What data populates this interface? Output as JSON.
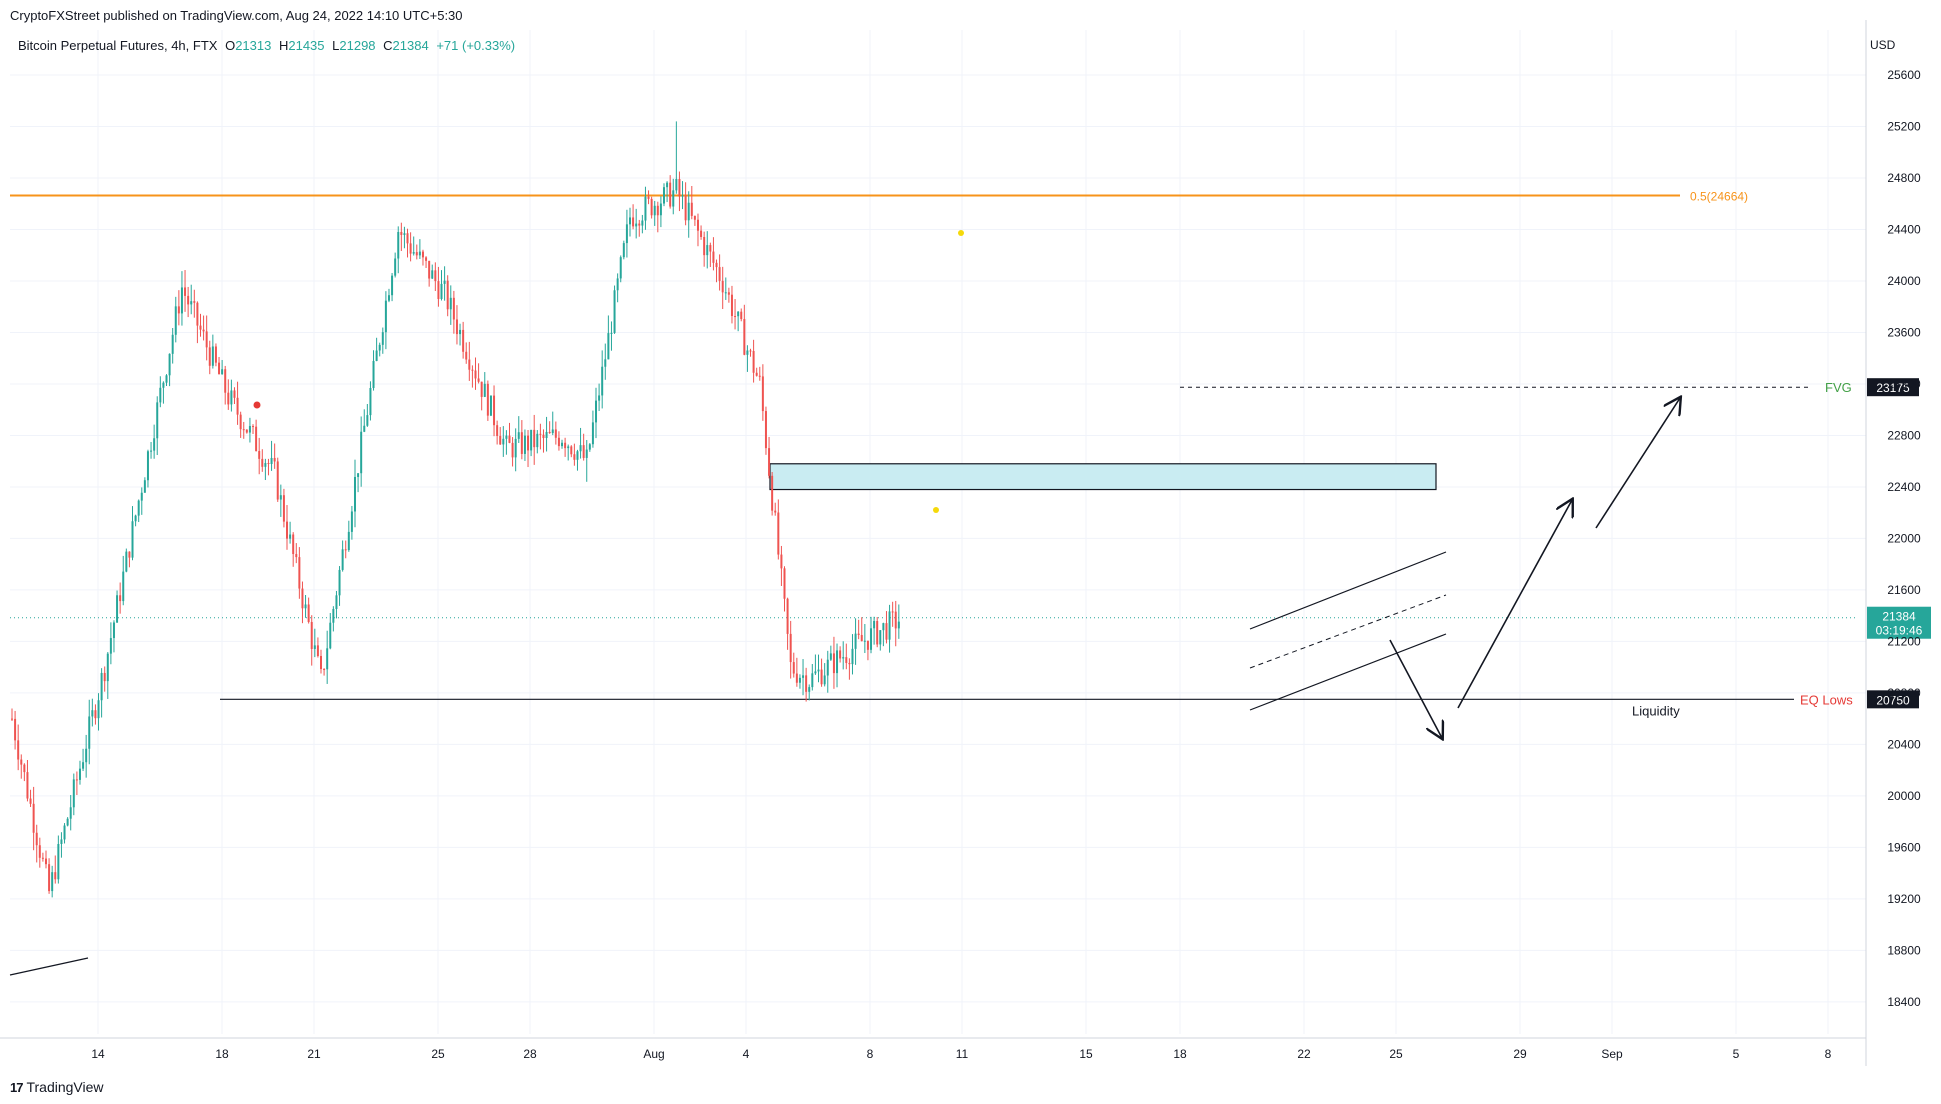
{
  "header": {
    "published": "CryptoFXStreet published on TradingView.com, Aug 24, 2022 14:10 UTC+5:30"
  },
  "legend": {
    "symbol": "Bitcoin Perpetual Futures, 4h, FTX",
    "o_label": "O",
    "o_value": "21313",
    "h_label": "H",
    "h_value": "21435",
    "l_label": "L",
    "l_value": "21298",
    "c_label": "C",
    "c_value": "21384",
    "change": "+71 (+0.33%)"
  },
  "footer": {
    "brand": "TradingView"
  },
  "colors": {
    "up": "#26a69a",
    "down": "#ef5350",
    "fib": "#f7931a",
    "fvg": "#43a047",
    "eq": "#e53935",
    "zone_fill": "#c9ecf2",
    "grid": "#f0f3fa",
    "axis_text": "#131722"
  },
  "chart_data": {
    "type": "candlestick",
    "currency": "USD",
    "ylim": [
      18150,
      25950
    ],
    "yticks": [
      18400,
      18800,
      19200,
      19600,
      20000,
      20400,
      20800,
      21200,
      21600,
      22000,
      22400,
      22800,
      23200,
      23600,
      24000,
      24400,
      24800,
      25200,
      25600
    ],
    "xticks": [
      "14",
      "18",
      "21",
      "25",
      "28",
      "Aug",
      "4",
      "8",
      "11",
      "15",
      "18",
      "22",
      "25",
      "29",
      "Sep",
      "5",
      "8"
    ],
    "price_labels": {
      "last": "21384",
      "countdown": "03:19:46",
      "fvg_value": "23175",
      "eq_value": "20750"
    },
    "annotations": {
      "fib": "0.5(24664)",
      "fvg": "FVG",
      "eq_lows": "EQ Lows",
      "liquidity": "Liquidity"
    },
    "levels": {
      "last": 21384,
      "fib": 24664,
      "fvg": 23175,
      "eq": 20750,
      "zone_top": 22580,
      "zone_bottom": 22380
    },
    "anchors": [
      {
        "bar": 0,
        "close": 20600,
        "low": 20450,
        "high": 20850
      },
      {
        "bar": 12,
        "close": 19250,
        "low": 19250,
        "high": 19500
      },
      {
        "bar": 30,
        "close": 21000,
        "low": 20800,
        "high": 21250
      },
      {
        "bar": 44,
        "close": 22650,
        "low": 22400,
        "high": 22900
      },
      {
        "bar": 55,
        "close": 23950,
        "low": 23500,
        "high": 24300
      },
      {
        "bar": 70,
        "close": 23100,
        "low": 22900,
        "high": 23500
      },
      {
        "bar": 85,
        "close": 22500,
        "low": 22300,
        "high": 22800
      },
      {
        "bar": 100,
        "close": 20900,
        "low": 20750,
        "high": 21050
      },
      {
        "bar": 115,
        "close": 23000,
        "low": 22800,
        "high": 23300
      },
      {
        "bar": 125,
        "close": 24400,
        "low": 24200,
        "high": 24700
      },
      {
        "bar": 140,
        "close": 23900,
        "low": 23700,
        "high": 24200
      },
      {
        "bar": 160,
        "close": 22700,
        "low": 22600,
        "high": 22900
      },
      {
        "bar": 178,
        "close": 22800,
        "low": 22500,
        "high": 23000
      },
      {
        "bar": 186,
        "close": 22600,
        "low": 22440,
        "high": 23400
      },
      {
        "bar": 200,
        "close": 24500,
        "low": 24300,
        "high": 24700
      },
      {
        "bar": 215,
        "close": 24700,
        "low": 24400,
        "high": 25200
      },
      {
        "bar": 230,
        "close": 24000,
        "low": 23800,
        "high": 24200
      },
      {
        "bar": 242,
        "close": 23200,
        "low": 23100,
        "high": 23400
      },
      {
        "bar": 252,
        "close": 21000,
        "low": 20900,
        "high": 22800
      },
      {
        "bar": 258,
        "close": 20900,
        "low": 20750,
        "high": 21200
      },
      {
        "bar": 275,
        "close": 21200,
        "low": 21000,
        "high": 21800
      },
      {
        "bar": 288,
        "close": 21384,
        "low": 21298,
        "high": 21435
      }
    ]
  }
}
